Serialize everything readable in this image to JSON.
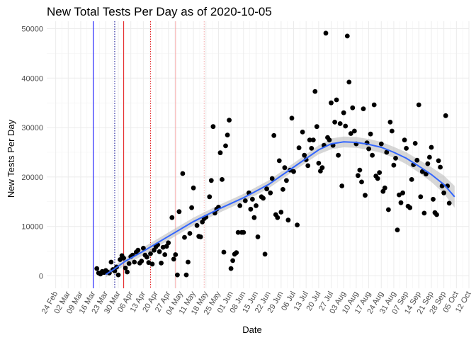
{
  "chart_data": {
    "type": "scatter",
    "title": "New Total Tests Per Day as of 2020-10-05",
    "xlabel": "Date",
    "ylabel": "New Tests Per Day",
    "x_axis": {
      "type": "date",
      "range": [
        "2020-02-19",
        "2020-10-12"
      ],
      "tick_dates": [
        "2020-02-24",
        "2020-03-02",
        "2020-03-09",
        "2020-03-16",
        "2020-03-23",
        "2020-03-30",
        "2020-04-06",
        "2020-04-13",
        "2020-04-20",
        "2020-04-27",
        "2020-05-04",
        "2020-05-11",
        "2020-05-18",
        "2020-05-25",
        "2020-06-01",
        "2020-06-08",
        "2020-06-15",
        "2020-06-22",
        "2020-06-29",
        "2020-07-06",
        "2020-07-13",
        "2020-07-20",
        "2020-07-27",
        "2020-08-03",
        "2020-08-10",
        "2020-08-17",
        "2020-08-24",
        "2020-08-31",
        "2020-09-07",
        "2020-09-14",
        "2020-09-21",
        "2020-09-28",
        "2020-10-05",
        "2020-10-12"
      ],
      "tick_labels": [
        "24 Feb",
        "02 Mar",
        "09 Mar",
        "16 Mar",
        "23 Mar",
        "30 Mar",
        "06 Apr",
        "13 Apr",
        "20 Apr",
        "27 Apr",
        "04 May",
        "11 May",
        "18 May",
        "25 May",
        "01 Jun",
        "08 Jun",
        "15 Jun",
        "22 Jun",
        "29 Jun",
        "06 Jul",
        "13 Jul",
        "20 Jul",
        "27 Jul",
        "03 Aug",
        "10 Aug",
        "17 Aug",
        "24 Aug",
        "31 Aug",
        "07 Sep",
        "14 Sep",
        "21 Sep",
        "28 Sep",
        "05 Oct",
        "12 Oct"
      ]
    },
    "y_axis": {
      "range": [
        -2500,
        51500
      ],
      "ticks": [
        0,
        10000,
        20000,
        30000,
        40000,
        50000
      ],
      "tick_labels": [
        "0",
        "10000",
        "20000",
        "30000",
        "40000",
        "50000"
      ]
    },
    "grid": true,
    "vlines": [
      {
        "date": "2020-03-16",
        "color": "#0000ff",
        "style": "solid"
      },
      {
        "date": "2020-03-28",
        "color": "#00008b",
        "style": "dotted"
      },
      {
        "date": "2020-04-02",
        "color": "#e31a1c",
        "style": "solid"
      },
      {
        "date": "2020-04-17",
        "color": "#e31a1c",
        "style": "dotted"
      },
      {
        "date": "2020-05-01",
        "color": "#f4a6a6",
        "style": "solid"
      },
      {
        "date": "2020-05-17",
        "color": "#f4a6a6",
        "style": "dotted"
      }
    ],
    "point_color": "#000000",
    "smooth_color": "#3366ff",
    "band_color": "#bdbdbd",
    "smooth": [
      {
        "x": "2020-03-23",
        "y": 300,
        "lo": -300,
        "hi": 900
      },
      {
        "x": "2020-03-27",
        "y": 1200,
        "lo": 600,
        "hi": 1800
      },
      {
        "x": "2020-04-03",
        "y": 3000,
        "lo": 2200,
        "hi": 3800
      },
      {
        "x": "2020-04-13",
        "y": 5000,
        "lo": 4200,
        "hi": 5800
      },
      {
        "x": "2020-04-27",
        "y": 8000,
        "lo": 7200,
        "hi": 8800
      },
      {
        "x": "2020-05-11",
        "y": 11000,
        "lo": 10200,
        "hi": 11800
      },
      {
        "x": "2020-05-25",
        "y": 13500,
        "lo": 12700,
        "hi": 14300
      },
      {
        "x": "2020-06-08",
        "y": 15800,
        "lo": 15000,
        "hi": 16600
      },
      {
        "x": "2020-06-22",
        "y": 18500,
        "lo": 17700,
        "hi": 19300
      },
      {
        "x": "2020-07-06",
        "y": 22000,
        "lo": 21200,
        "hi": 22800
      },
      {
        "x": "2020-07-20",
        "y": 25500,
        "lo": 24600,
        "hi": 26400
      },
      {
        "x": "2020-07-27",
        "y": 26700,
        "lo": 25600,
        "hi": 27800
      },
      {
        "x": "2020-08-03",
        "y": 27100,
        "lo": 26000,
        "hi": 28200
      },
      {
        "x": "2020-08-10",
        "y": 27000,
        "lo": 25900,
        "hi": 28100
      },
      {
        "x": "2020-08-17",
        "y": 26600,
        "lo": 25500,
        "hi": 27700
      },
      {
        "x": "2020-08-24",
        "y": 26000,
        "lo": 24900,
        "hi": 27100
      },
      {
        "x": "2020-08-31",
        "y": 25000,
        "lo": 23900,
        "hi": 26100
      },
      {
        "x": "2020-09-07",
        "y": 23800,
        "lo": 22600,
        "hi": 25000
      },
      {
        "x": "2020-09-14",
        "y": 22200,
        "lo": 20900,
        "hi": 23500
      },
      {
        "x": "2020-09-21",
        "y": 20500,
        "lo": 19000,
        "hi": 22000
      },
      {
        "x": "2020-09-28",
        "y": 18500,
        "lo": 16700,
        "hi": 20300
      },
      {
        "x": "2020-10-04",
        "y": 16000,
        "lo": 13800,
        "hi": 18200
      }
    ],
    "points": [
      {
        "x": "2020-03-18",
        "y": 1500
      },
      {
        "x": "2020-03-19",
        "y": 600
      },
      {
        "x": "2020-03-20",
        "y": 400
      },
      {
        "x": "2020-03-21",
        "y": 900
      },
      {
        "x": "2020-03-22",
        "y": 700
      },
      {
        "x": "2020-03-23",
        "y": 1100
      },
      {
        "x": "2020-03-24",
        "y": 800
      },
      {
        "x": "2020-03-25",
        "y": 600
      },
      {
        "x": "2020-03-26",
        "y": 2800
      },
      {
        "x": "2020-03-27",
        "y": 1300
      },
      {
        "x": "2020-03-28",
        "y": 1000
      },
      {
        "x": "2020-03-29",
        "y": 1800
      },
      {
        "x": "2020-03-30",
        "y": 200
      },
      {
        "x": "2020-03-31",
        "y": 3300
      },
      {
        "x": "2020-04-01",
        "y": 4100
      },
      {
        "x": "2020-04-02",
        "y": 3600
      },
      {
        "x": "2020-04-03",
        "y": 1600
      },
      {
        "x": "2020-04-04",
        "y": 800
      },
      {
        "x": "2020-04-05",
        "y": 2500
      },
      {
        "x": "2020-04-06",
        "y": 3900
      },
      {
        "x": "2020-04-07",
        "y": 4200
      },
      {
        "x": "2020-04-08",
        "y": 2800
      },
      {
        "x": "2020-04-09",
        "y": 4800
      },
      {
        "x": "2020-04-10",
        "y": 5200
      },
      {
        "x": "2020-04-11",
        "y": 2600
      },
      {
        "x": "2020-04-12",
        "y": 3000
      },
      {
        "x": "2020-04-13",
        "y": 5600
      },
      {
        "x": "2020-04-14",
        "y": 4200
      },
      {
        "x": "2020-04-15",
        "y": 3800
      },
      {
        "x": "2020-04-16",
        "y": 2700
      },
      {
        "x": "2020-04-17",
        "y": 4500
      },
      {
        "x": "2020-04-18",
        "y": 2400
      },
      {
        "x": "2020-04-19",
        "y": 5200
      },
      {
        "x": "2020-04-20",
        "y": 5900
      },
      {
        "x": "2020-04-21",
        "y": 6300
      },
      {
        "x": "2020-04-22",
        "y": 4900
      },
      {
        "x": "2020-04-23",
        "y": 2600
      },
      {
        "x": "2020-04-24",
        "y": 5800
      },
      {
        "x": "2020-04-25",
        "y": 4300
      },
      {
        "x": "2020-04-26",
        "y": 6000
      },
      {
        "x": "2020-04-27",
        "y": 6700
      },
      {
        "x": "2020-04-29",
        "y": 11800
      },
      {
        "x": "2020-04-30",
        "y": 3400
      },
      {
        "x": "2020-05-01",
        "y": 4300
      },
      {
        "x": "2020-05-02",
        "y": 200
      },
      {
        "x": "2020-05-03",
        "y": 13000
      },
      {
        "x": "2020-05-05",
        "y": 20700
      },
      {
        "x": "2020-05-06",
        "y": 7800
      },
      {
        "x": "2020-05-07",
        "y": 200
      },
      {
        "x": "2020-05-08",
        "y": 2800
      },
      {
        "x": "2020-05-09",
        "y": 8600
      },
      {
        "x": "2020-05-10",
        "y": 13800
      },
      {
        "x": "2020-05-11",
        "y": 17800
      },
      {
        "x": "2020-05-13",
        "y": 10200
      },
      {
        "x": "2020-05-14",
        "y": 8000
      },
      {
        "x": "2020-05-15",
        "y": 7900
      },
      {
        "x": "2020-05-16",
        "y": 10900
      },
      {
        "x": "2020-05-17",
        "y": 11600
      },
      {
        "x": "2020-05-18",
        "y": 11900
      },
      {
        "x": "2020-05-20",
        "y": 16000
      },
      {
        "x": "2020-05-21",
        "y": 19300
      },
      {
        "x": "2020-05-22",
        "y": 30200
      },
      {
        "x": "2020-05-23",
        "y": 12700
      },
      {
        "x": "2020-05-24",
        "y": 13500
      },
      {
        "x": "2020-05-25",
        "y": 13900
      },
      {
        "x": "2020-05-26",
        "y": 24900
      },
      {
        "x": "2020-05-27",
        "y": 19500
      },
      {
        "x": "2020-05-28",
        "y": 4800
      },
      {
        "x": "2020-05-29",
        "y": 26300
      },
      {
        "x": "2020-05-30",
        "y": 28500
      },
      {
        "x": "2020-05-31",
        "y": 31500
      },
      {
        "x": "2020-06-01",
        "y": 1500
      },
      {
        "x": "2020-06-02",
        "y": 3100
      },
      {
        "x": "2020-06-03",
        "y": 4400
      },
      {
        "x": "2020-06-04",
        "y": 4700
      },
      {
        "x": "2020-06-05",
        "y": 8800
      },
      {
        "x": "2020-06-06",
        "y": 14200
      },
      {
        "x": "2020-06-07",
        "y": 8800
      },
      {
        "x": "2020-06-08",
        "y": 8800
      },
      {
        "x": "2020-06-09",
        "y": 15200
      },
      {
        "x": "2020-06-11",
        "y": 16800
      },
      {
        "x": "2020-06-12",
        "y": 13500
      },
      {
        "x": "2020-06-13",
        "y": 15500
      },
      {
        "x": "2020-06-14",
        "y": 11800
      },
      {
        "x": "2020-06-15",
        "y": 14200
      },
      {
        "x": "2020-06-16",
        "y": 7900
      },
      {
        "x": "2020-06-18",
        "y": 16000
      },
      {
        "x": "2020-06-19",
        "y": 15700
      },
      {
        "x": "2020-06-20",
        "y": 4400
      },
      {
        "x": "2020-06-21",
        "y": 17600
      },
      {
        "x": "2020-06-23",
        "y": 16800
      },
      {
        "x": "2020-06-24",
        "y": 19700
      },
      {
        "x": "2020-06-25",
        "y": 28400
      },
      {
        "x": "2020-06-26",
        "y": 12400
      },
      {
        "x": "2020-06-27",
        "y": 11800
      },
      {
        "x": "2020-06-28",
        "y": 23300
      },
      {
        "x": "2020-06-29",
        "y": 12900
      },
      {
        "x": "2020-06-30",
        "y": 17500
      },
      {
        "x": "2020-07-01",
        "y": 21900
      },
      {
        "x": "2020-07-02",
        "y": 19300
      },
      {
        "x": "2020-07-03",
        "y": 11300
      },
      {
        "x": "2020-07-04",
        "y": 21400
      },
      {
        "x": "2020-07-05",
        "y": 31900
      },
      {
        "x": "2020-07-06",
        "y": 21100
      },
      {
        "x": "2020-07-08",
        "y": 10300
      },
      {
        "x": "2020-07-09",
        "y": 25900
      },
      {
        "x": "2020-07-11",
        "y": 29100
      },
      {
        "x": "2020-07-12",
        "y": 24400
      },
      {
        "x": "2020-07-13",
        "y": 23500
      },
      {
        "x": "2020-07-14",
        "y": 22300
      },
      {
        "x": "2020-07-15",
        "y": 27500
      },
      {
        "x": "2020-07-16",
        "y": 25800
      },
      {
        "x": "2020-07-17",
        "y": 27500
      },
      {
        "x": "2020-07-18",
        "y": 37300
      },
      {
        "x": "2020-07-19",
        "y": 30200
      },
      {
        "x": "2020-07-20",
        "y": 22800
      },
      {
        "x": "2020-07-21",
        "y": 21200
      },
      {
        "x": "2020-07-22",
        "y": 21900
      },
      {
        "x": "2020-07-23",
        "y": 26400
      },
      {
        "x": "2020-07-24",
        "y": 49100
      },
      {
        "x": "2020-07-25",
        "y": 28000
      },
      {
        "x": "2020-07-26",
        "y": 27500
      },
      {
        "x": "2020-07-27",
        "y": 35000
      },
      {
        "x": "2020-07-28",
        "y": 26400
      },
      {
        "x": "2020-07-29",
        "y": 31100
      },
      {
        "x": "2020-07-30",
        "y": 35600
      },
      {
        "x": "2020-07-31",
        "y": 24400
      },
      {
        "x": "2020-08-01",
        "y": 30800
      },
      {
        "x": "2020-08-02",
        "y": 18200
      },
      {
        "x": "2020-08-03",
        "y": 33000
      },
      {
        "x": "2020-08-04",
        "y": 30300
      },
      {
        "x": "2020-08-05",
        "y": 48500
      },
      {
        "x": "2020-08-06",
        "y": 39200
      },
      {
        "x": "2020-08-07",
        "y": 28800
      },
      {
        "x": "2020-08-08",
        "y": 34000
      },
      {
        "x": "2020-08-09",
        "y": 29300
      },
      {
        "x": "2020-08-10",
        "y": 26700
      },
      {
        "x": "2020-08-11",
        "y": 20300
      },
      {
        "x": "2020-08-12",
        "y": 21400
      },
      {
        "x": "2020-08-13",
        "y": 19000
      },
      {
        "x": "2020-08-14",
        "y": 33800
      },
      {
        "x": "2020-08-15",
        "y": 16300
      },
      {
        "x": "2020-08-16",
        "y": 26900
      },
      {
        "x": "2020-08-17",
        "y": 25700
      },
      {
        "x": "2020-08-18",
        "y": 28700
      },
      {
        "x": "2020-08-19",
        "y": 24400
      },
      {
        "x": "2020-08-20",
        "y": 34600
      },
      {
        "x": "2020-08-21",
        "y": 20200
      },
      {
        "x": "2020-08-22",
        "y": 19700
      },
      {
        "x": "2020-08-23",
        "y": 20900
      },
      {
        "x": "2020-08-24",
        "y": 26700
      },
      {
        "x": "2020-08-25",
        "y": 17100
      },
      {
        "x": "2020-08-26",
        "y": 17800
      },
      {
        "x": "2020-08-27",
        "y": 25000
      },
      {
        "x": "2020-08-28",
        "y": 13400
      },
      {
        "x": "2020-08-29",
        "y": 31100
      },
      {
        "x": "2020-08-30",
        "y": 29300
      },
      {
        "x": "2020-08-31",
        "y": 22400
      },
      {
        "x": "2020-09-01",
        "y": 23800
      },
      {
        "x": "2020-09-02",
        "y": 9300
      },
      {
        "x": "2020-09-03",
        "y": 16400
      },
      {
        "x": "2020-09-04",
        "y": 14800
      },
      {
        "x": "2020-09-05",
        "y": 16800
      },
      {
        "x": "2020-09-06",
        "y": 27500
      },
      {
        "x": "2020-09-07",
        "y": 25800
      },
      {
        "x": "2020-09-08",
        "y": 14100
      },
      {
        "x": "2020-09-09",
        "y": 13800
      },
      {
        "x": "2020-09-10",
        "y": 19500
      },
      {
        "x": "2020-09-11",
        "y": 22500
      },
      {
        "x": "2020-09-12",
        "y": 26800
      },
      {
        "x": "2020-09-13",
        "y": 23400
      },
      {
        "x": "2020-09-14",
        "y": 34600
      },
      {
        "x": "2020-09-15",
        "y": 16000
      },
      {
        "x": "2020-09-16",
        "y": 21100
      },
      {
        "x": "2020-09-17",
        "y": 12700
      },
      {
        "x": "2020-09-18",
        "y": 20600
      },
      {
        "x": "2020-09-19",
        "y": 22700
      },
      {
        "x": "2020-09-20",
        "y": 24000
      },
      {
        "x": "2020-09-21",
        "y": 26000
      },
      {
        "x": "2020-09-22",
        "y": 15500
      },
      {
        "x": "2020-09-23",
        "y": 12800
      },
      {
        "x": "2020-09-24",
        "y": 12400
      },
      {
        "x": "2020-09-25",
        "y": 23300
      },
      {
        "x": "2020-09-26",
        "y": 22000
      },
      {
        "x": "2020-09-27",
        "y": 18200
      },
      {
        "x": "2020-09-28",
        "y": 16800
      },
      {
        "x": "2020-09-29",
        "y": 32400
      },
      {
        "x": "2020-09-30",
        "y": 18200
      },
      {
        "x": "2020-10-01",
        "y": 14700
      }
    ]
  }
}
